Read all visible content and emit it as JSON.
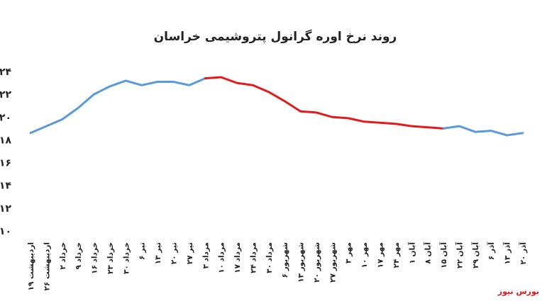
{
  "chart_data": {
    "type": "line",
    "title": "روند نرخ اوره گرانول پتروشیمی خراسان",
    "source": "بورس نیوز",
    "ylim": [
      10,
      24
    ],
    "yticks": [
      "۱۰",
      "۱۲",
      "۱۴",
      "۱۶",
      "۱۸",
      "۲۰",
      "۲۲",
      "۲۴"
    ],
    "grid": false,
    "categories": [
      "۱۹ اردیبهشت",
      "۲۶ اردیبهشت",
      "۲ خرداد",
      "۹ خرداد",
      "۱۶ خرداد",
      "۲۳ خرداد",
      "۳۰ خرداد",
      "۶ تیر",
      "۱۳ تیر",
      "۲۰ تیر",
      "۲۷ تیر",
      "۳ مرداد",
      "۱۰ مرداد",
      "۱۷ مرداد",
      "۲۴ مرداد",
      "۳۰ مرداد",
      "۶ شهریور",
      "۱۳ شهریور",
      "۲۰ شهریور",
      "۲۷ شهریور",
      "۳ مهر",
      "۱۰ مهر",
      "۱۷ مهر",
      "۲۴ مهر",
      "۱ آبان",
      "۸ آبان",
      "۱۵ آبان",
      "۲۲ آبان",
      "۲۹ آبان",
      "۶ آذر",
      "۱۳ آذر",
      "۲۰ آذر"
    ],
    "series": [
      {
        "values": [
          18.6,
          19.2,
          19.8,
          20.8,
          22.0,
          22.7,
          23.2,
          22.8,
          23.1,
          23.1,
          22.8,
          23.4,
          23.5,
          23.0,
          22.8,
          22.2,
          21.4,
          20.5,
          20.4,
          20.0,
          19.9,
          19.6,
          19.5,
          19.4,
          19.2,
          19.1,
          19.0,
          19.2,
          18.7,
          18.8,
          18.4,
          18.6
        ]
      }
    ],
    "segment_colors": [
      {
        "from": 0,
        "to": 11,
        "color": "#5b9bd5"
      },
      {
        "from": 11,
        "to": 26,
        "color": "#e31a1c"
      },
      {
        "from": 26,
        "to": 31,
        "color": "#5b9bd5"
      }
    ]
  }
}
